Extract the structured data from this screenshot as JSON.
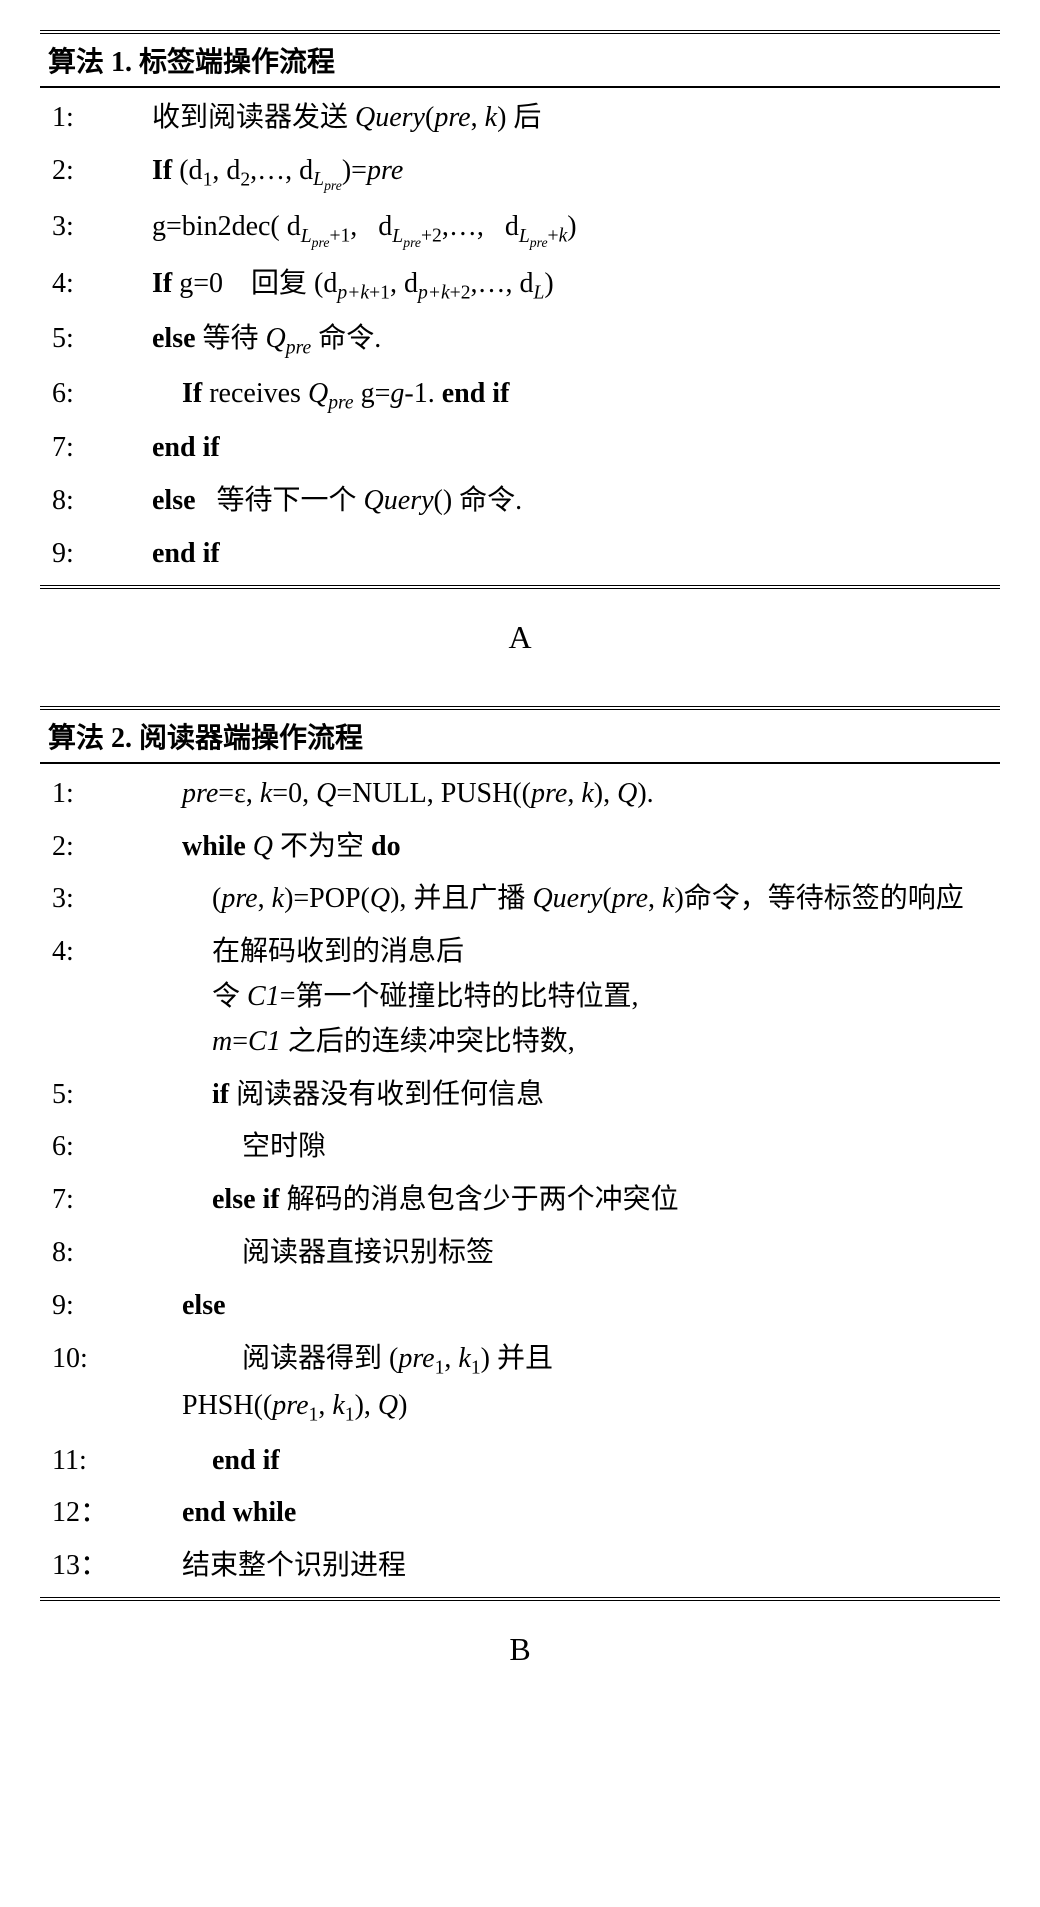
{
  "algo1": {
    "title_prefix": "算法 1.",
    "title_text": "标签端操作流程",
    "label": "A",
    "lines": [
      {
        "num": "1:",
        "indent": "ind1",
        "html": "收到阅读器发送 <span class='italic'>Query</span>(<span class='italic'>pre</span>, <span class='italic'>k</span>) 后"
      },
      {
        "num": "2:",
        "indent": "ind1",
        "html": "<span class='bold'>If</span> (d<sub>1</sub>, d<sub>2</sub>,…, d<sub><span class='italic'>L<sub>pre</sub></span></sub>)=<span class='italic'>pre</span>"
      },
      {
        "num": "3:",
        "indent": "ind1",
        "html": "g=bin2dec( d<sub><span class='italic'>L<sub>pre</sub></span>+1</sub>, &nbsp;&nbsp;d<sub><span class='italic'>L<sub>pre</sub></span>+2</sub>,…, &nbsp;&nbsp;d<sub><span class='italic'>L<sub>pre</sub></span>+<span class='italic'>k</span></sub>)"
      },
      {
        "num": "4:",
        "indent": "ind1",
        "html": "<span class='bold'>If</span> g=0 &nbsp;&nbsp;&nbsp;回复 (d<sub><span class='italic'>p+k</span>+1</sub>, d<sub><span class='italic'>p+k</span>+2</sub>,…, d<sub><span class='italic'>L</span></sub>)"
      },
      {
        "num": "5:",
        "indent": "ind1",
        "html": "<span class='bold'>else</span> 等待 <span class='italic'>Q<sub>pre</sub></span> 命令."
      },
      {
        "num": "6:",
        "indent": "ind2",
        "html": "<span class='bold'>If</span> receives <span class='italic'>Q<sub>pre</sub></span> g=<span class='italic'>g</span>-1. <span class='bold'>end if</span>"
      },
      {
        "num": "7:",
        "indent": "ind1",
        "html": "<span class='bold'>end if</span>"
      },
      {
        "num": "8:",
        "indent": "ind1",
        "html": "<span class='bold'>else</span> &nbsp;&nbsp;等待下一个 <span class='italic'>Query</span>() 命令."
      },
      {
        "num": "9:",
        "indent": "ind1",
        "html": "<span class='bold'>end if</span>"
      }
    ]
  },
  "algo2": {
    "title_prefix": "算法 2.",
    "title_text": "阅读器端操作流程",
    "label": "B",
    "lines": [
      {
        "num": "1:",
        "indent": "ind2",
        "html": "<span class='italic'>pre</span>=ε, <span class='italic'>k</span>=0, <span class='italic'>Q</span>=NULL, PUSH((<span class='italic'>pre</span>, <span class='italic'>k</span>), <span class='italic'>Q</span>)."
      },
      {
        "num": "2:",
        "indent": "ind2",
        "html": "<span class='bold'>while</span> <span class='italic'>Q</span> 不为空 <span class='bold'>do</span>"
      },
      {
        "num": "3:",
        "indent": "ind3",
        "html": "(<span class='italic'>pre</span>, <span class='italic'>k</span>)=POP(<span class='italic'>Q</span>), 并且广播 <span class='italic'>Query</span>(<span class='italic'>pre</span>, <span class='italic'>k</span>)命令，等待标签的响应"
      },
      {
        "num": "4:",
        "indent": "ind3",
        "html": "在解码收到的消息后<br>令 <span class='italic'>C1</span>=第一个碰撞比特的比特位置,<br><span class='italic'>m</span>=<span class='italic'>C1</span> 之后的连续冲突比特数,"
      },
      {
        "num": "5:",
        "indent": "ind3",
        "html": "<span class='bold'>if</span> 阅读器没有收到任何信息"
      },
      {
        "num": "6:",
        "indent": "ind4",
        "html": "空时隙"
      },
      {
        "num": "7:",
        "indent": "ind3",
        "html": "<span class='bold'>else if</span> 解码的消息包含少于两个冲突位"
      },
      {
        "num": "8:",
        "indent": "ind4",
        "html": "阅读器直接识别标签"
      },
      {
        "num": "9:",
        "indent": "ind2",
        "html": "<span class='bold'>else</span>"
      },
      {
        "num": "10:",
        "indent": "ind4",
        "html": "阅读器得到 (<span class='italic'>pre</span><sub>1</sub>, <span class='italic'>k</span><sub>1</sub>) 并且<br><span style='margin-left:-60px;'>PHSH((<span class='italic'>pre</span><sub>1</sub>, <span class='italic'>k</span><sub>1</sub>), <span class='italic'>Q</span>)</span>"
      },
      {
        "num": "11:",
        "indent": "ind3",
        "html": "<span class='bold'>end if</span>"
      },
      {
        "num": "12：",
        "indent": "ind2",
        "html": "<span class='bold'>end while</span>"
      },
      {
        "num": "13：",
        "indent": "ind2",
        "html": "结束整个识别进程"
      }
    ]
  }
}
